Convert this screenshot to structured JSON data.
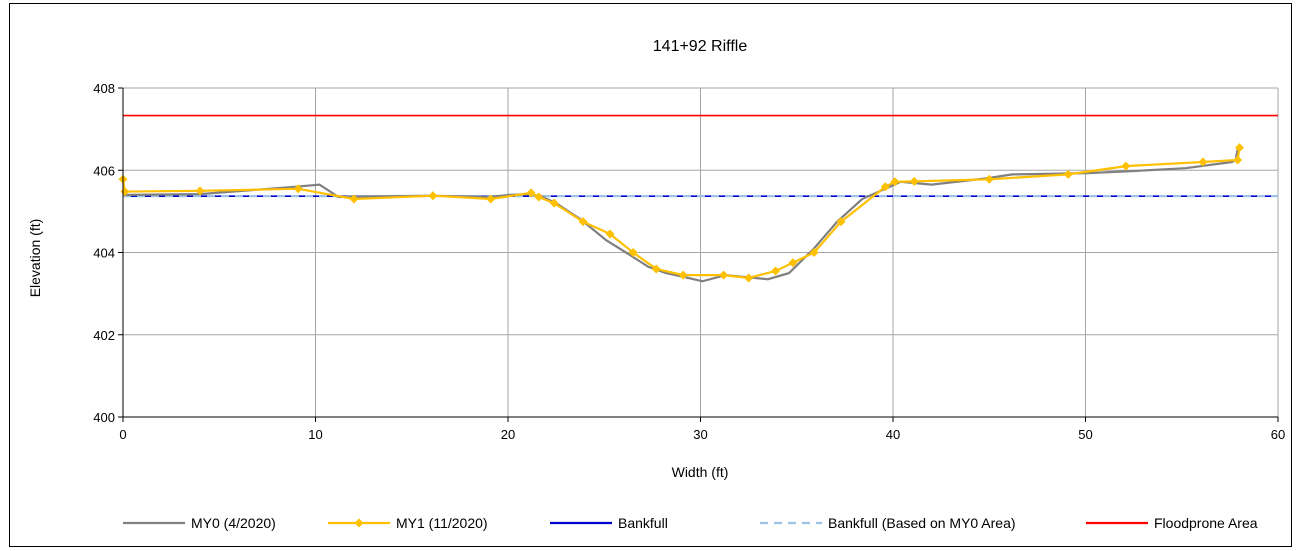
{
  "chart_data": {
    "type": "line",
    "title": "141+92 Riffle",
    "xlabel": "Width (ft)",
    "ylabel": "Elevation (ft)",
    "xlim": [
      0,
      60
    ],
    "ylim": [
      400,
      408
    ],
    "x_ticks": [
      "0",
      "10",
      "20",
      "30",
      "40",
      "50",
      "60"
    ],
    "y_ticks": [
      "400",
      "402",
      "404",
      "406",
      "408"
    ],
    "grid": true,
    "legend_position": "bottom",
    "series": [
      {
        "name": "MY0 (4/2020)",
        "color": "#808080",
        "style": "solid",
        "markers": false,
        "x": [
          0,
          0.1,
          4,
          9,
          10.2,
          11.2,
          16,
          19,
          20.1,
          21.2,
          21.8,
          22.5,
          23.8,
          25.1,
          26.3,
          27.3,
          28.2,
          29.2,
          30.1,
          31.3,
          32.4,
          33.5,
          34.6,
          35.9,
          37.1,
          38.4,
          39.6,
          40.4,
          42,
          44.8,
          46.2,
          50.1,
          52.4,
          55.2,
          57.6,
          57.8,
          57.9
        ],
        "y": [
          405.75,
          405.4,
          405.42,
          405.6,
          405.65,
          405.35,
          405.38,
          405.35,
          405.4,
          405.42,
          405.35,
          405.2,
          404.8,
          404.3,
          403.95,
          403.65,
          403.5,
          403.4,
          403.3,
          403.45,
          403.4,
          403.35,
          403.5,
          404.1,
          404.75,
          405.3,
          405.55,
          405.72,
          405.65,
          405.8,
          405.9,
          405.93,
          405.98,
          406.05,
          406.2,
          406.25,
          406.5
        ]
      },
      {
        "name": "MY1 (11/2020)",
        "color": "#FFC000",
        "style": "solid",
        "markers": true,
        "x": [
          0,
          0.1,
          4,
          9.1,
          12,
          16.1,
          19.1,
          21.2,
          21.6,
          22.4,
          23.9,
          25.3,
          26.5,
          27.7,
          29.1,
          31.2,
          32.5,
          33.9,
          34.8,
          35.9,
          37.3,
          39.6,
          40.1,
          41.1,
          45,
          49.1,
          52.1,
          56.1,
          57.9,
          58
        ],
        "y": [
          405.78,
          405.48,
          405.5,
          405.55,
          405.3,
          405.38,
          405.3,
          405.45,
          405.35,
          405.2,
          404.75,
          404.45,
          404.0,
          403.6,
          403.45,
          403.45,
          403.38,
          403.55,
          403.75,
          404.0,
          404.75,
          405.6,
          405.72,
          405.73,
          405.78,
          405.9,
          406.1,
          406.2,
          406.25,
          406.55
        ]
      },
      {
        "name": "Bankfull",
        "color": "#0000CC",
        "style": "solid",
        "markers": false,
        "x": [
          0,
          60
        ],
        "y": [
          405.37,
          405.37
        ]
      },
      {
        "name": "Bankfull (Based on MY0 Area)",
        "color": "#9DC3E6",
        "style": "dashed",
        "markers": false,
        "x": [
          0,
          60
        ],
        "y": [
          405.37,
          405.37
        ]
      },
      {
        "name": "Floodprone Area",
        "color": "#FF0000",
        "style": "solid",
        "markers": false,
        "x": [
          0,
          60
        ],
        "y": [
          407.33,
          407.33
        ]
      }
    ]
  }
}
